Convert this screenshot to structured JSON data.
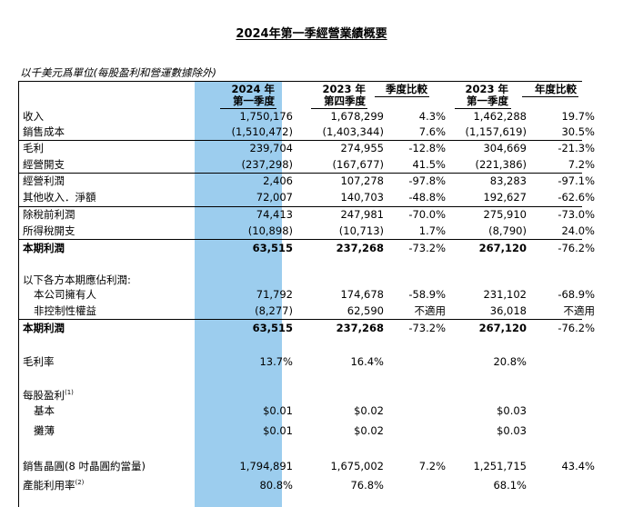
{
  "title": "2024年第一季經營業績概要",
  "units_note": "以千美元爲單位(每股盈利和營運數據除外)",
  "columns": {
    "col1": {
      "line1": "2024 年",
      "line2": "第一季度"
    },
    "col2": {
      "line1": "2023 年",
      "line2": "第四季度"
    },
    "col3": {
      "line1": "季度比較"
    },
    "col4": {
      "line1": "2023 年",
      "line2": "第一季度"
    },
    "col5": {
      "line1": "年度比較"
    }
  },
  "rows": {
    "revenue": {
      "label": "收入",
      "v": [
        "1,750,176",
        "1,678,299",
        "4.3%",
        "1,462,288",
        "19.7%"
      ]
    },
    "cost_of_sales": {
      "label": "銷售成本",
      "v": [
        "(1,510,472)",
        "(1,403,344)",
        "7.6%",
        "(1,157,619)",
        "30.5%"
      ]
    },
    "gross_profit": {
      "label": "毛利",
      "v": [
        "239,704",
        "274,955",
        "-12.8%",
        "304,669",
        "-21.3%"
      ]
    },
    "opex": {
      "label": "經營開支",
      "v": [
        "(237,298)",
        "(167,677)",
        "41.5%",
        "(221,386)",
        "7.2%"
      ]
    },
    "op_profit": {
      "label": "經營利潤",
      "v": [
        "2,406",
        "107,278",
        "-97.8%",
        "83,283",
        "-97.1%"
      ]
    },
    "other_income": {
      "label": "其他收入．淨額",
      "v": [
        "72,007",
        "140,703",
        "-48.8%",
        "192,627",
        "-62.6%"
      ]
    },
    "pretax": {
      "label": "除稅前利潤",
      "v": [
        "74,413",
        "247,981",
        "-70.0%",
        "275,910",
        "-73.0%"
      ]
    },
    "tax": {
      "label": "所得稅開支",
      "v": [
        "(10,898)",
        "(10,713)",
        "1.7%",
        "(8,790)",
        "24.0%"
      ]
    },
    "net_profit": {
      "label": "本期利潤",
      "v": [
        "63,515",
        "237,268",
        "-73.2%",
        "267,120",
        "-76.2%"
      ]
    },
    "attrib_header": {
      "label": "以下各方本期應佔利潤:"
    },
    "owners": {
      "label": "本公司擁有人",
      "v": [
        "71,792",
        "174,678",
        "-58.9%",
        "231,102",
        "-68.9%"
      ]
    },
    "nci": {
      "label": "非控制性權益",
      "v": [
        "(8,277)",
        "62,590",
        "不適用",
        "36,018",
        "不適用"
      ]
    },
    "net_profit2": {
      "label": "本期利潤",
      "v": [
        "63,515",
        "237,268",
        "-73.2%",
        "267,120",
        "-76.2%"
      ]
    },
    "gross_margin": {
      "label": "毛利率",
      "v": [
        "13.7%",
        "16.4%",
        "",
        "20.8%",
        ""
      ]
    },
    "eps_header": {
      "label": "每股盈利",
      "sup": "(1)"
    },
    "eps_basic": {
      "label": "基本",
      "v": [
        "$0.01",
        "$0.02",
        "",
        "$0.03",
        ""
      ]
    },
    "eps_diluted": {
      "label": "攤薄",
      "v": [
        "$0.01",
        "$0.02",
        "",
        "$0.03",
        ""
      ]
    },
    "wafers": {
      "label": "銷售晶圓(8 吋晶圓約當量)",
      "v": [
        "1,794,891",
        "1,675,002",
        "7.2%",
        "1,251,715",
        "43.4%"
      ]
    },
    "utilization": {
      "label": "產能利用率",
      "sup": "(2)",
      "v": [
        "80.8%",
        "76.8%",
        "",
        "68.1%",
        ""
      ]
    }
  },
  "colors": {
    "highlight": "#9ccdee"
  }
}
